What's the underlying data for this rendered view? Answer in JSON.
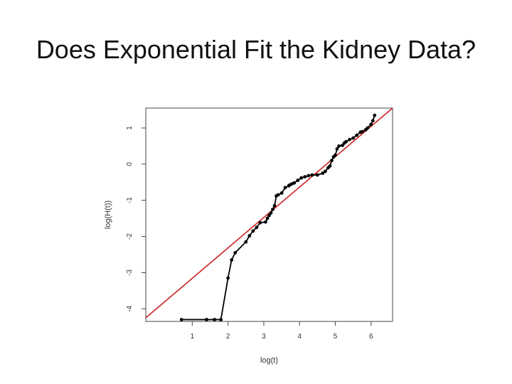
{
  "slide": {
    "title": "Does Exponential Fit the Kidney Data?"
  },
  "chart_data": {
    "type": "line",
    "title": "",
    "xlabel": "log(t)",
    "ylabel": "log(H(t))",
    "xlim": [
      -0.3,
      6.6
    ],
    "ylim": [
      -4.35,
      1.55
    ],
    "x_ticks": [
      {
        "value": 1,
        "label": "1"
      },
      {
        "value": 2,
        "label": "2"
      },
      {
        "value": 3,
        "label": "3"
      },
      {
        "value": 4,
        "label": "4"
      },
      {
        "value": 5,
        "label": "5"
      },
      {
        "value": 6,
        "label": "6"
      }
    ],
    "y_ticks": [
      {
        "value": -4,
        "label": "-4"
      },
      {
        "value": -3,
        "label": "-3"
      },
      {
        "value": -2,
        "label": "-2"
      },
      {
        "value": -1,
        "label": "-1"
      },
      {
        "value": 0,
        "label": "0"
      },
      {
        "value": 1,
        "label": "1"
      }
    ],
    "grid": false,
    "box": true,
    "series": [
      {
        "color": "#000000",
        "marker": "circle",
        "x": [
          0.7,
          1.4,
          1.62,
          1.8,
          2.0,
          2.1,
          2.2,
          2.5,
          2.6,
          2.7,
          2.8,
          2.9,
          3.05,
          3.1,
          3.15,
          3.2,
          3.25,
          3.3,
          3.35,
          3.4,
          3.5,
          3.6,
          3.7,
          3.72,
          3.78,
          3.85,
          3.95,
          4.05,
          4.15,
          4.25,
          4.35,
          4.5,
          4.65,
          4.72,
          4.8,
          4.85,
          4.9,
          4.95,
          5.0,
          5.05,
          5.1,
          5.2,
          5.25,
          5.3,
          5.4,
          5.5,
          5.6,
          5.7,
          5.75,
          5.85,
          5.9,
          6.0,
          6.05,
          6.1
        ],
        "y": [
          -4.3,
          -4.3,
          -4.3,
          -4.3,
          -3.15,
          -2.65,
          -2.45,
          -2.15,
          -1.98,
          -1.85,
          -1.75,
          -1.62,
          -1.6,
          -1.5,
          -1.42,
          -1.35,
          -1.25,
          -1.15,
          -0.88,
          -0.85,
          -0.8,
          -0.65,
          -0.6,
          -0.58,
          -0.55,
          -0.52,
          -0.45,
          -0.38,
          -0.35,
          -0.32,
          -0.3,
          -0.3,
          -0.25,
          -0.2,
          -0.1,
          -0.05,
          0.1,
          0.2,
          0.25,
          0.42,
          0.5,
          0.52,
          0.58,
          0.62,
          0.68,
          0.72,
          0.8,
          0.88,
          0.9,
          0.95,
          1.0,
          1.1,
          1.2,
          1.35
        ]
      }
    ],
    "reference_line": {
      "color": "#cc2222",
      "x": [
        -0.3,
        6.6
      ],
      "y": [
        -4.25,
        1.55
      ]
    }
  }
}
